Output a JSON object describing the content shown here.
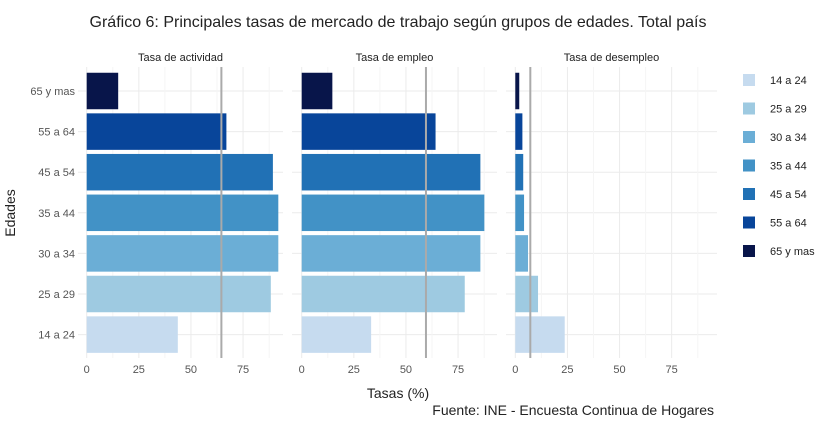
{
  "chart_data": {
    "type": "bar",
    "orientation": "horizontal",
    "title": "Gráfico 6: Principales tasas de mercado de trabajo según grupos de edades. Total país",
    "xlabel": "Tasas (%)",
    "ylabel": "Edades",
    "caption": "Fuente: INE - Encuesta Continua de Hogares",
    "xlim": [
      0,
      95
    ],
    "xticks": [
      "0",
      "25",
      "50",
      "75"
    ],
    "xtick_values": [
      0,
      25,
      50,
      75
    ],
    "grid": true,
    "legend_position": "right",
    "categories": [
      "14 a 24",
      "25 a 29",
      "30 a 34",
      "35 a 44",
      "45 a 54",
      "55 a 64",
      "65 y mas"
    ],
    "colors": {
      "14 a 24": "#c6dbef",
      "25 a 29": "#9ecae1",
      "30 a 34": "#6baed6",
      "35 a 44": "#4292c6",
      "45 a 54": "#2171b5",
      "55 a 64": "#08459a",
      "65 y mas": "#08154a"
    },
    "reference_line_color": "#aaaaaa",
    "panels": [
      {
        "name": "Tasa de actividad",
        "values": [
          43.7,
          88.3,
          91.9,
          91.9,
          89.3,
          67.0,
          15.1
        ],
        "reference_line": 64.6
      },
      {
        "name": "Tasa de empleo",
        "values": [
          33.3,
          78.2,
          85.7,
          87.6,
          85.7,
          64.2,
          14.7
        ],
        "reference_line": 59.6
      },
      {
        "name": "Tasa de desempleo",
        "values": [
          23.7,
          10.9,
          6.1,
          4.2,
          3.8,
          3.4,
          1.9
        ],
        "reference_line": 7.2
      }
    ],
    "legend": [
      {
        "label": "14 a 24"
      },
      {
        "label": "25 a 29"
      },
      {
        "label": "30 a 34"
      },
      {
        "label": "35 a 44"
      },
      {
        "label": "45 a 54"
      },
      {
        "label": "55 a 64"
      },
      {
        "label": "65 y mas"
      }
    ]
  }
}
